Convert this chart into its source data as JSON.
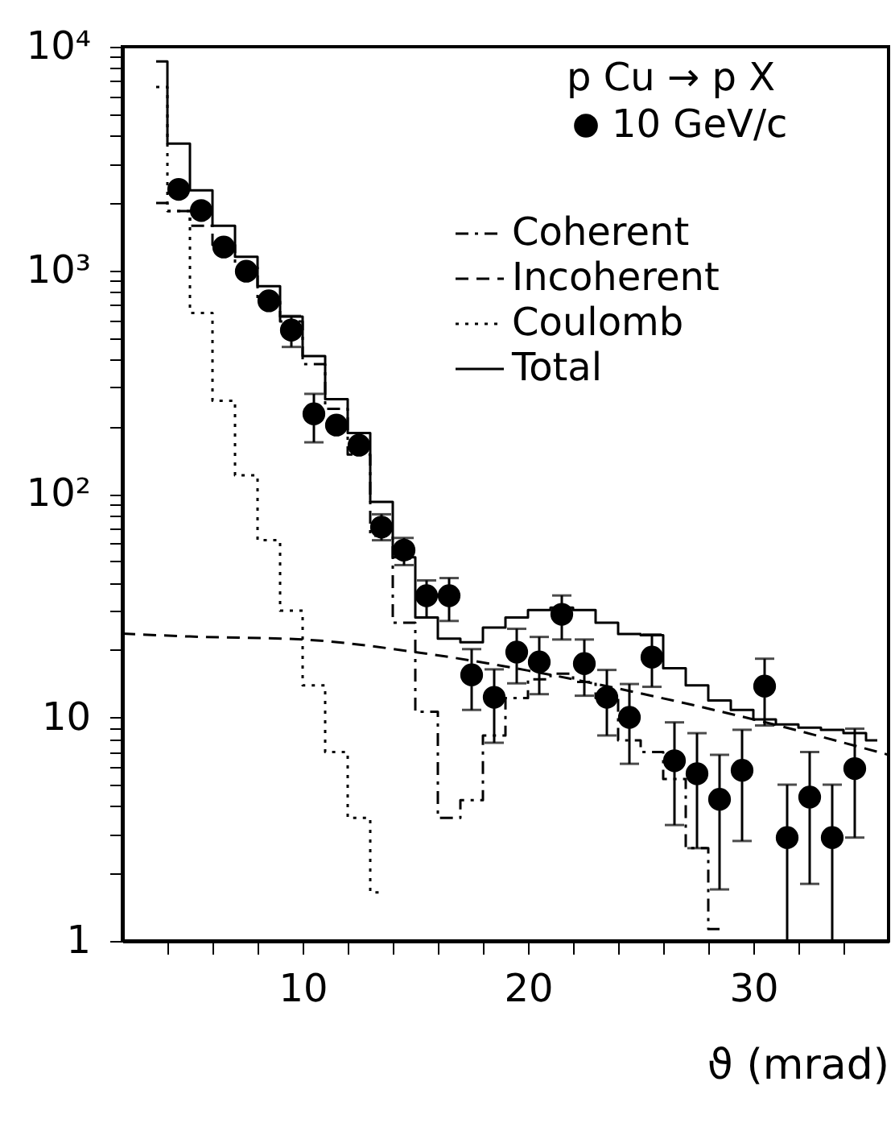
{
  "chart_data": {
    "type": "scatter",
    "xlabel": "ϑ (mrad)",
    "legend_title": "p Cu → p X",
    "legend": "top right",
    "grid": false,
    "log": "y",
    "xlim": [
      2,
      36
    ],
    "ylim": [
      1,
      10000
    ],
    "xticks": [
      {
        "value": 4,
        "label": null
      },
      {
        "value": 6,
        "label": null
      },
      {
        "value": 8,
        "label": null
      },
      10,
      {
        "value": 12,
        "label": null
      },
      {
        "value": 14,
        "label": null
      },
      {
        "value": 16,
        "label": null
      },
      {
        "value": 18,
        "label": null
      },
      20,
      {
        "value": 22,
        "label": null
      },
      {
        "value": 24,
        "label": null
      },
      {
        "value": 26,
        "label": null
      },
      {
        "value": 28,
        "label": null
      },
      30,
      {
        "value": 32,
        "label": null
      },
      {
        "value": 34,
        "label": null
      }
    ],
    "yticks": [
      1,
      {
        "value": 2,
        "label": null
      },
      {
        "value": 3,
        "label": null
      },
      {
        "value": 4,
        "label": null
      },
      {
        "value": 5,
        "label": null
      },
      {
        "value": 6,
        "label": null
      },
      {
        "value": 7,
        "label": null
      },
      {
        "value": 8,
        "label": null
      },
      {
        "value": 9,
        "label": null
      },
      10,
      {
        "value": 20,
        "label": null
      },
      {
        "value": 30,
        "label": null
      },
      {
        "value": 40,
        "label": null
      },
      {
        "value": 50,
        "label": null
      },
      {
        "value": 60,
        "label": null
      },
      {
        "value": 70,
        "label": null
      },
      {
        "value": 80,
        "label": null
      },
      {
        "value": 90,
        "label": null
      },
      {
        "value": 100,
        "label": "10²"
      },
      {
        "value": 200,
        "label": null
      },
      {
        "value": 300,
        "label": null
      },
      {
        "value": 400,
        "label": null
      },
      {
        "value": 500,
        "label": null
      },
      {
        "value": 600,
        "label": null
      },
      {
        "value": 700,
        "label": null
      },
      {
        "value": 800,
        "label": null
      },
      {
        "value": 900,
        "label": null
      },
      {
        "value": 1000,
        "label": "10³"
      },
      {
        "value": 2000,
        "label": null
      },
      {
        "value": 3000,
        "label": null
      },
      {
        "value": 4000,
        "label": null
      },
      {
        "value": 5000,
        "label": null
      },
      {
        "value": 6000,
        "label": null
      },
      {
        "value": 7000,
        "label": null
      },
      {
        "value": 8000,
        "label": null
      },
      {
        "value": 9000,
        "label": null
      },
      {
        "value": 10000,
        "label": "10⁴"
      }
    ],
    "series": [
      {
        "name": "10 GeV/c",
        "color": "#000000",
        "marker": "circle",
        "x": [
          4.5,
          5.5,
          6.5,
          7.5,
          8.5,
          9.5,
          10.5,
          11.5,
          12.5,
          13.5,
          14.5,
          15.5,
          16.5,
          17.5,
          18.5,
          19.5,
          20.5,
          21.5,
          22.5,
          23.5,
          24.5,
          25.5,
          26.5,
          27.5,
          28.5,
          29.5,
          30.5,
          31.5,
          32.5,
          33.5,
          34.5
        ],
        "values": [
          2300,
          1850,
          1270,
          990,
          730,
          540,
          228,
          203,
          165,
          71,
          56,
          35,
          35,
          15.5,
          12.3,
          19.6,
          17.7,
          28.9,
          17.4,
          12.3,
          10,
          18.6,
          6.4,
          5.6,
          4.3,
          5.8,
          13.8,
          2.9,
          4.4,
          2.9,
          5.9
        ],
        "errors": [
          null,
          null,
          null,
          null,
          null,
          [
            454,
            625
          ],
          [
            170,
            280
          ],
          null,
          null,
          [
            62,
            81
          ],
          [
            48,
            63.5
          ],
          [
            28,
            41
          ],
          [
            27,
            42
          ],
          [
            10.8,
            20.2
          ],
          [
            7.7,
            16.4
          ],
          [
            14.2,
            24.9
          ],
          [
            12.7,
            22.9
          ],
          [
            22.3,
            35.1
          ],
          [
            12.5,
            22.3
          ],
          [
            8.3,
            16.3
          ],
          [
            6.2,
            14.1
          ],
          [
            13.7,
            23.5
          ],
          [
            3.3,
            9.5
          ],
          [
            2.6,
            8.5
          ],
          [
            1.7,
            6.8
          ],
          [
            2.8,
            8.8
          ],
          [
            9.2,
            18.3
          ],
          [
            1,
            5
          ],
          [
            1.8,
            7
          ],
          [
            1,
            5
          ],
          [
            2.9,
            8.9
          ]
        ]
      },
      {
        "name": "Coherent",
        "type": "step",
        "color": "#000000",
        "line_style": "dashdot",
        "marker": "none",
        "x": [
          3.5,
          4.5,
          5.5,
          6.5,
          7.5,
          8.5,
          9.5,
          10.5,
          11.5,
          12.5,
          13.5,
          14.5,
          15.5,
          16.5,
          17.5,
          18.5,
          19.5,
          20.5,
          21.5,
          22.5,
          23.5,
          24.5,
          25.5,
          26.5,
          27.5,
          28.5
        ],
        "values": [
          2000,
          1840,
          1580,
          1300,
          1030,
          725,
          590,
          380,
          240,
          150,
          65,
          26.5,
          10.6,
          3.55,
          4.26,
          8.3,
          12.2,
          14.8,
          15.7,
          14.4,
          12.2,
          7.9,
          7,
          5.3,
          2.6,
          1.13
        ]
      },
      {
        "name": "Incoherent",
        "type": "line",
        "color": "#000000",
        "line_style": "dashed",
        "marker": "none",
        "x": [
          2,
          5,
          10,
          15,
          20,
          25,
          30,
          36
        ],
        "values": [
          23.7,
          23,
          22.3,
          19.6,
          16.2,
          12.8,
          9.8,
          6.8
        ]
      },
      {
        "name": "Coulomb",
        "type": "step",
        "color": "#000000",
        "line_style": "dotted",
        "marker": "none",
        "x": [
          3.5,
          4.5,
          5.5,
          6.5,
          7.5,
          8.5,
          9.5,
          10.5,
          11.5,
          12.5,
          13.5
        ],
        "values": [
          6600,
          1840,
          644,
          261,
          121,
          62,
          30,
          13.9,
          7,
          3.55,
          1.65
        ]
      },
      {
        "name": "Total",
        "type": "step",
        "color": "#000000",
        "line_style": "solid",
        "marker": "none",
        "x": [
          3.5,
          4.5,
          5.5,
          6.5,
          7.5,
          8.5,
          9.5,
          10.5,
          11.5,
          12.5,
          13.5,
          14.5,
          15.5,
          16.5,
          17.5,
          18.5,
          19.5,
          20.5,
          21.5,
          22.5,
          23.5,
          24.5,
          25.5,
          26.5,
          27.5,
          28.5,
          29.5,
          30.5,
          31.5,
          32.5,
          33.5,
          34.5,
          35.5
        ],
        "values": [
          8600,
          3690,
          2280,
          1580,
          1150,
          849,
          620,
          413,
          265,
          187,
          92,
          52,
          28,
          22.5,
          21.7,
          25.2,
          28,
          30.2,
          31,
          30.2,
          26.5,
          23.6,
          23.3,
          16.6,
          13.9,
          11.9,
          10.8,
          9.8,
          9.3,
          9,
          8.8,
          8.5,
          7.9
        ]
      }
    ]
  }
}
